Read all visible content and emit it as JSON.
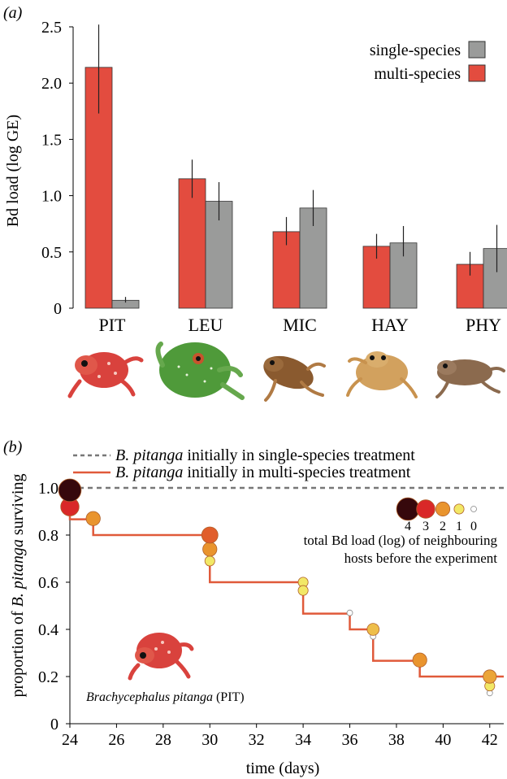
{
  "chart_data": [
    {
      "type": "bar",
      "panel_label": "(a)",
      "ylabel": "Bd load (log GE)",
      "xlabel": "",
      "ylim": [
        0,
        2.5
      ],
      "yticks": [
        "0",
        "0.5",
        "1.0",
        "1.5",
        "2.0",
        "2.5"
      ],
      "categories": [
        "PIT",
        "LEU",
        "MIC",
        "HAY",
        "PHY"
      ],
      "legend": {
        "position": "top-right",
        "entries": [
          "single-species",
          "multi-species"
        ]
      },
      "series": [
        {
          "name": "multi-species",
          "color": "#e34c3f",
          "values": [
            2.14,
            1.15,
            0.68,
            0.55,
            0.39
          ],
          "error_low": [
            1.73,
            0.98,
            0.56,
            0.44,
            0.29
          ],
          "error_high": [
            2.52,
            1.32,
            0.81,
            0.66,
            0.5
          ]
        },
        {
          "name": "single-species",
          "color": "#9a9b9a",
          "values": [
            0.07,
            0.95,
            0.89,
            0.58,
            0.53
          ],
          "error_low": [
            0.05,
            0.78,
            0.73,
            0.46,
            0.32
          ],
          "error_high": [
            0.1,
            1.12,
            1.05,
            0.73,
            0.74
          ]
        }
      ]
    },
    {
      "type": "line",
      "panel_label": "(b)",
      "ylabel_prefix": "proportion of ",
      "ylabel_species": "B. pitanga",
      "ylabel_suffix": " surviving",
      "xlabel": "time (days)",
      "xlim": [
        24,
        42.6
      ],
      "ylim": [
        0,
        1.0
      ],
      "xticks": [
        24,
        26,
        28,
        30,
        32,
        34,
        36,
        38,
        40,
        42
      ],
      "yticks": [
        "0",
        "0.2",
        "0.4",
        "0.6",
        "0.8",
        "1.0"
      ],
      "legend_entries": [
        {
          "species": "B. pitanga",
          "text": " initially in single-species treatment"
        },
        {
          "species": "B. pitanga",
          "text": " initially in multi-species treatment"
        }
      ],
      "series": [
        {
          "name": "single-species",
          "style": "dashed",
          "color": "#777777",
          "x": [
            24,
            42.6
          ],
          "y": [
            1.0,
            1.0
          ]
        },
        {
          "name": "multi-species",
          "style": "step",
          "color": "#e05a3a",
          "x": [
            24,
            24,
            25,
            30,
            34,
            36,
            37,
            39,
            42.6
          ],
          "y": [
            1.0,
            0.867,
            0.8,
            0.6,
            0.467,
            0.4,
            0.267,
            0.2,
            0.2
          ]
        }
      ],
      "bd_load_legend": {
        "values": [
          "4",
          "3",
          "2",
          "1",
          "0"
        ],
        "caption_line1": "total Bd load (log) of neighbouring",
        "caption_line2": "hosts before the experiment"
      },
      "events": [
        {
          "day": 24,
          "y": 0.99,
          "load": 4
        },
        {
          "day": 24,
          "y": 0.92,
          "load": 3
        },
        {
          "day": 25,
          "y": 0.87,
          "load": 2
        },
        {
          "day": 30,
          "y": 0.8,
          "load": 2.5
        },
        {
          "day": 30,
          "y": 0.74,
          "load": 2
        },
        {
          "day": 30,
          "y": 0.69,
          "load": 1
        },
        {
          "day": 34,
          "y": 0.6,
          "load": 1
        },
        {
          "day": 34,
          "y": 0.565,
          "load": 1
        },
        {
          "day": 36,
          "y": 0.47,
          "load": 0
        },
        {
          "day": 37,
          "y": 0.4,
          "load": 1.5
        },
        {
          "day": 37,
          "y": 0.37,
          "load": 0
        },
        {
          "day": 39,
          "y": 0.27,
          "load": 2
        },
        {
          "day": 42,
          "y": 0.2,
          "load": 1.8
        },
        {
          "day": 42,
          "y": 0.16,
          "load": 1
        },
        {
          "day": 42,
          "y": 0.13,
          "load": 0
        }
      ],
      "species_caption_name": "Brachycephalus pitanga",
      "species_caption_code": " (PIT)"
    }
  ]
}
